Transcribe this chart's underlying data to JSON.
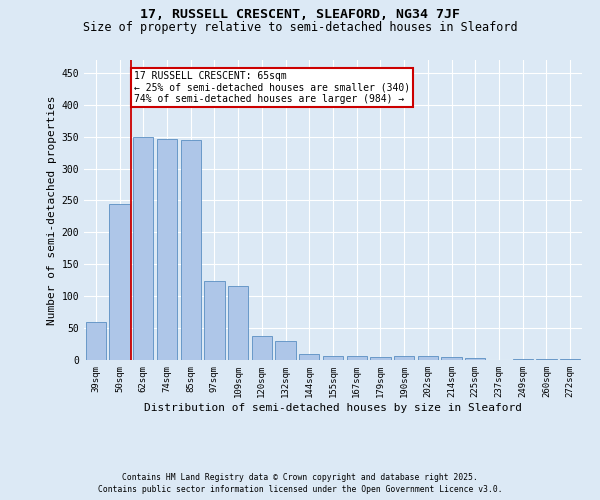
{
  "title_line1": "17, RUSSELL CRESCENT, SLEAFORD, NG34 7JF",
  "title_line2": "Size of property relative to semi-detached houses in Sleaford",
  "categories": [
    "39sqm",
    "50sqm",
    "62sqm",
    "74sqm",
    "85sqm",
    "97sqm",
    "109sqm",
    "120sqm",
    "132sqm",
    "144sqm",
    "155sqm",
    "167sqm",
    "179sqm",
    "190sqm",
    "202sqm",
    "214sqm",
    "225sqm",
    "237sqm",
    "249sqm",
    "260sqm",
    "272sqm"
  ],
  "values": [
    60,
    245,
    350,
    347,
    345,
    124,
    116,
    38,
    30,
    9,
    6,
    6,
    5,
    7,
    7,
    4,
    3,
    0,
    1,
    1,
    2
  ],
  "bar_color": "#aec6e8",
  "bar_edge_color": "#5a8fc2",
  "ylabel": "Number of semi-detached properties",
  "xlabel": "Distribution of semi-detached houses by size in Sleaford",
  "ylim": [
    0,
    470
  ],
  "yticks": [
    0,
    50,
    100,
    150,
    200,
    250,
    300,
    350,
    400,
    450
  ],
  "property_line_x": 1.5,
  "property_line_color": "#cc0000",
  "annotation_text": "17 RUSSELL CRESCENT: 65sqm\n← 25% of semi-detached houses are smaller (340)\n74% of semi-detached houses are larger (984) →",
  "annotation_box_color": "#ffffff",
  "annotation_box_edge": "#cc0000",
  "footer_line1": "Contains HM Land Registry data © Crown copyright and database right 2025.",
  "footer_line2": "Contains public sector information licensed under the Open Government Licence v3.0.",
  "background_color": "#dce9f5",
  "plot_bg_color": "#dce9f5",
  "title_fontsize": 9.5,
  "subtitle_fontsize": 8.5,
  "tick_fontsize": 6.5,
  "ylabel_fontsize": 8,
  "xlabel_fontsize": 8,
  "footer_fontsize": 5.8,
  "annot_fontsize": 7.0
}
